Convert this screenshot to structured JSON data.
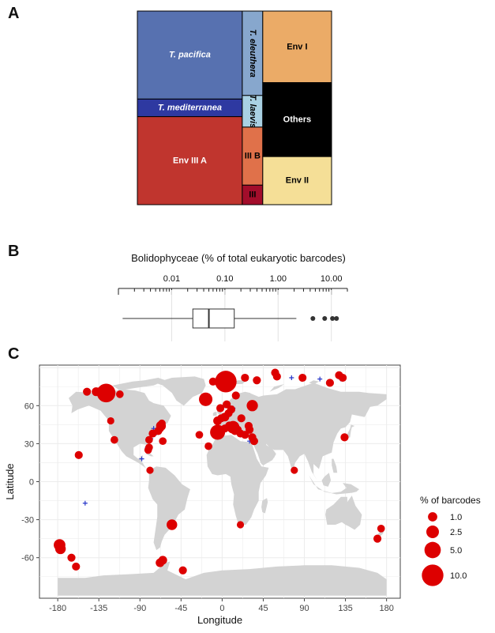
{
  "panel_labels": {
    "a": "A",
    "b": "B",
    "c": "C"
  },
  "colors": {
    "T. pacifica": "#5771b0",
    "T. mediterranea": "#2e39a1",
    "T. eleuthera": "#87a7cd",
    "T. laevis": "#a9d1e3",
    "Env III A": "#c0352e",
    "III B": "#e0714a",
    "III": "#a30d2b",
    "Env I": "#ebab67",
    "Others": "#000000",
    "Env II": "#f5df97",
    "map_land": "#d3d3d3",
    "map_panel": "#ebebeb",
    "points": "#dd0000",
    "absent": "#2636c9"
  },
  "chart_data": [
    {
      "type": "treemap",
      "panel": "A",
      "columns": [
        {
          "total": 62.5,
          "groups": [
            {
              "name": "T. pacifica",
              "value": 40.0,
              "label": "T. pacifica",
              "italic": true
            },
            {
              "name": "T. mediterranea",
              "value": 8.0,
              "label": "T. mediterranea",
              "italic": true
            },
            {
              "name": "Env III A",
              "value": 40.0,
              "label": "Env III A",
              "italic": false
            }
          ]
        },
        {
          "total": 12.2,
          "groups": [
            {
              "name": "T. eleuthera",
              "value": 16.0,
              "label": "T. eleuthera",
              "italic": true,
              "vertical": true
            },
            {
              "name": "T. laevis",
              "value": 6.0,
              "label": "T. laevis",
              "italic": true,
              "vertical": true
            },
            {
              "name": "III B",
              "value": 11.0,
              "label": "III B",
              "italic": false
            },
            {
              "name": "III",
              "value": 3.7,
              "label": "III",
              "italic": false
            }
          ]
        },
        {
          "total": 41.0,
          "groups": [
            {
              "name": "Env I",
              "value": 11.6,
              "label": "Env I",
              "italic": false
            },
            {
              "name": "Others",
              "value": 12.0,
              "label": "Others",
              "italic": false,
              "lightText": true
            },
            {
              "name": "Env II",
              "value": 7.8,
              "label": "Env II",
              "italic": false
            }
          ]
        }
      ]
    },
    {
      "type": "boxplot",
      "panel": "B",
      "title": "Bolidophyceae (% of total eukaryotic barcodes)",
      "scale": "log10",
      "xlim": [
        0.001,
        20
      ],
      "ticks": [
        0.01,
        0.1,
        1,
        10
      ],
      "tick_labels": [
        "0.01",
        "0.10",
        "1.00",
        "10.00"
      ],
      "whisker_low": 0.0012,
      "q1": 0.025,
      "median": 0.05,
      "q3": 0.15,
      "whisker_high": 2.2,
      "outliers": [
        4.5,
        7.5,
        10.5,
        12.5
      ]
    },
    {
      "type": "scatter",
      "panel": "C",
      "xlabel": "Longitude",
      "ylabel": "Latitude",
      "xlim": [
        -200,
        195
      ],
      "ylim": [
        -92,
        92
      ],
      "xticks": [
        -180,
        -135,
        -90,
        -45,
        0,
        45,
        90,
        135,
        180
      ],
      "yticks": [
        -60,
        -30,
        0,
        30,
        60
      ],
      "legend": {
        "title": "% of barcodes",
        "entries": [
          {
            "label": "1.0",
            "value": 1.0
          },
          {
            "label": "2.5",
            "value": 2.5
          },
          {
            "label": "5.0",
            "value": 5.0
          },
          {
            "label": "10.0",
            "value": 10.0
          }
        ],
        "position": "right"
      },
      "points": [
        {
          "lon": 4,
          "lat": 79,
          "pct": 10
        },
        {
          "lon": -127,
          "lat": 70,
          "pct": 7
        },
        {
          "lon": -18,
          "lat": 65,
          "pct": 3
        },
        {
          "lon": -5,
          "lat": 39,
          "pct": 4
        },
        {
          "lon": 12,
          "lat": 43,
          "pct": 2.5
        },
        {
          "lon": -178,
          "lat": -50,
          "pct": 2
        },
        {
          "lon": -177,
          "lat": -53,
          "pct": 1.5
        },
        {
          "lon": -55,
          "lat": -34,
          "pct": 1.5
        },
        {
          "lon": 33,
          "lat": 60,
          "pct": 1.8
        },
        {
          "lon": -67,
          "lat": 44,
          "pct": 1.2
        },
        {
          "lon": -138,
          "lat": 71,
          "pct": 0.8
        },
        {
          "lon": -134,
          "lat": 71,
          "pct": 0.8
        },
        {
          "lon": -148,
          "lat": 71,
          "pct": 0.6
        },
        {
          "lon": -112,
          "lat": 69,
          "pct": 0.5
        },
        {
          "lon": -68,
          "lat": 42,
          "pct": 0.6
        },
        {
          "lon": -70,
          "lat": 40,
          "pct": 0.6
        },
        {
          "lon": -66,
          "lat": 46,
          "pct": 0.5
        },
        {
          "lon": -76,
          "lat": 38,
          "pct": 0.6
        },
        {
          "lon": -80,
          "lat": 33,
          "pct": 0.5
        },
        {
          "lon": -80,
          "lat": 27,
          "pct": 0.5
        },
        {
          "lon": -81,
          "lat": 25,
          "pct": 0.5
        },
        {
          "lon": -65,
          "lat": 32,
          "pct": 0.5
        },
        {
          "lon": -118,
          "lat": 33,
          "pct": 0.5
        },
        {
          "lon": -122,
          "lat": 48,
          "pct": 0.4
        },
        {
          "lon": -157,
          "lat": 21,
          "pct": 0.6
        },
        {
          "lon": -79,
          "lat": 9,
          "pct": 0.4
        },
        {
          "lon": -165,
          "lat": -60,
          "pct": 0.6
        },
        {
          "lon": -160,
          "lat": -67,
          "pct": 0.6
        },
        {
          "lon": -68,
          "lat": -64,
          "pct": 0.8
        },
        {
          "lon": -65,
          "lat": -62,
          "pct": 0.8
        },
        {
          "lon": -43,
          "lat": -70,
          "pct": 0.6
        },
        {
          "lon": 20,
          "lat": -34,
          "pct": 0.4
        },
        {
          "lon": 3,
          "lat": 51,
          "pct": 0.8
        },
        {
          "lon": -1,
          "lat": 50,
          "pct": 0.6
        },
        {
          "lon": -5,
          "lat": 48,
          "pct": 0.8
        },
        {
          "lon": 5,
          "lat": 61,
          "pct": 0.6
        },
        {
          "lon": 7,
          "lat": 54,
          "pct": 0.6
        },
        {
          "lon": -2,
          "lat": 58,
          "pct": 0.6
        },
        {
          "lon": 10,
          "lat": 57,
          "pct": 0.6
        },
        {
          "lon": 15,
          "lat": 68,
          "pct": 0.6
        },
        {
          "lon": 8,
          "lat": 44,
          "pct": 0.8
        },
        {
          "lon": 3,
          "lat": 42,
          "pct": 0.6
        },
        {
          "lon": 14,
          "lat": 40,
          "pct": 0.6
        },
        {
          "lon": 17,
          "lat": 41,
          "pct": 0.6
        },
        {
          "lon": 20,
          "lat": 38,
          "pct": 0.6
        },
        {
          "lon": 25,
          "lat": 37,
          "pct": 0.6
        },
        {
          "lon": 30,
          "lat": 41,
          "pct": 0.6
        },
        {
          "lon": 29,
          "lat": 44,
          "pct": 0.6
        },
        {
          "lon": 33,
          "lat": 35,
          "pct": 0.6
        },
        {
          "lon": 35,
          "lat": 32,
          "pct": 0.6
        },
        {
          "lon": 21,
          "lat": 50,
          "pct": 0.6
        },
        {
          "lon": -15,
          "lat": 28,
          "pct": 0.5
        },
        {
          "lon": -25,
          "lat": 37,
          "pct": 0.5
        },
        {
          "lon": -10,
          "lat": 79,
          "pct": 0.6
        },
        {
          "lon": 25,
          "lat": 82,
          "pct": 0.6
        },
        {
          "lon": 38,
          "lat": 80,
          "pct": 0.6
        },
        {
          "lon": 58,
          "lat": 86,
          "pct": 0.6
        },
        {
          "lon": 60,
          "lat": 83,
          "pct": 0.6
        },
        {
          "lon": 88,
          "lat": 82,
          "pct": 0.6
        },
        {
          "lon": 128,
          "lat": 84,
          "pct": 0.6
        },
        {
          "lon": 132,
          "lat": 82,
          "pct": 0.6
        },
        {
          "lon": 118,
          "lat": 78,
          "pct": 0.6
        },
        {
          "lon": 134,
          "lat": 35,
          "pct": 0.6
        },
        {
          "lon": 79,
          "lat": 9,
          "pct": 0.4
        },
        {
          "lon": 174,
          "lat": -37,
          "pct": 0.5
        },
        {
          "lon": 170,
          "lat": -45,
          "pct": 0.6
        }
      ],
      "absent": [
        {
          "lon": 58,
          "lat": 86
        },
        {
          "lon": 76,
          "lat": 82
        },
        {
          "lon": 107,
          "lat": 81
        },
        {
          "lon": 130,
          "lat": 81
        },
        {
          "lon": 3,
          "lat": 60
        },
        {
          "lon": 12,
          "lat": 58
        },
        {
          "lon": 15,
          "lat": 39
        },
        {
          "lon": 20,
          "lat": 38
        },
        {
          "lon": -72,
          "lat": 40
        },
        {
          "lon": -74,
          "lat": 37
        },
        {
          "lon": -78,
          "lat": 34
        },
        {
          "lon": -82,
          "lat": 27
        },
        {
          "lon": -88,
          "lat": 18
        },
        {
          "lon": -150,
          "lat": -17
        },
        {
          "lon": -75,
          "lat": 42
        },
        {
          "lon": 30,
          "lat": 32
        }
      ]
    }
  ]
}
